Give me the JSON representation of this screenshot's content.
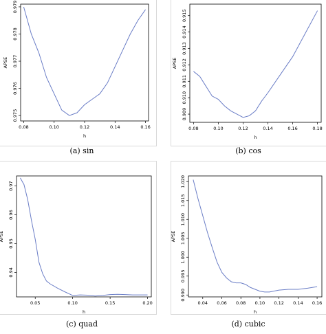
{
  "charts": [
    {
      "caption": "(a) sin",
      "chart_data": {
        "type": "line",
        "xlabel": "h",
        "ylabel": "APSE",
        "xlim": [
          0.078,
          0.162
        ],
        "ylim": [
          0.9748,
          0.9791
        ],
        "xticks": [
          0.08,
          0.1,
          0.12,
          0.14,
          0.16
        ],
        "xtick_labels": [
          "0.08",
          "0.10",
          "0.12",
          "0.14",
          "0.16"
        ],
        "yticks": [
          0.975,
          0.976,
          0.977,
          0.978,
          0.979
        ],
        "ytick_labels": [
          "0.975",
          "0.976",
          "0.977",
          "0.978",
          "0.979"
        ],
        "x": [
          0.08,
          0.085,
          0.09,
          0.095,
          0.1,
          0.105,
          0.11,
          0.115,
          0.12,
          0.125,
          0.13,
          0.135,
          0.14,
          0.145,
          0.15,
          0.155,
          0.16
        ],
        "y": [
          0.979,
          0.978,
          0.9773,
          0.9764,
          0.9758,
          0.9752,
          0.975,
          0.9751,
          0.9754,
          0.9756,
          0.9758,
          0.9762,
          0.9768,
          0.9774,
          0.978,
          0.9785,
          0.9789
        ]
      }
    },
    {
      "caption": "(b) cos",
      "chart_data": {
        "type": "line",
        "xlabel": "h",
        "ylabel": "APSE",
        "xlim": [
          0.077,
          0.183
        ],
        "ylim": [
          0.9085,
          0.9157
        ],
        "xticks": [
          0.08,
          0.1,
          0.12,
          0.14,
          0.16,
          0.18
        ],
        "xtick_labels": [
          "0.08",
          "0.10",
          "0.12",
          "0.14",
          "0.16",
          "0.18"
        ],
        "yticks": [
          0.909,
          0.91,
          0.911,
          0.912,
          0.913,
          0.914,
          0.915
        ],
        "ytick_labels": [
          "0.909",
          "0.910",
          "0.911",
          "0.912",
          "0.913",
          "0.914",
          "0.915"
        ],
        "x": [
          0.08,
          0.085,
          0.09,
          0.095,
          0.1,
          0.105,
          0.11,
          0.115,
          0.12,
          0.125,
          0.13,
          0.135,
          0.14,
          0.15,
          0.16,
          0.17,
          0.18
        ],
        "y": [
          0.9116,
          0.9113,
          0.9107,
          0.9101,
          0.9099,
          0.9095,
          0.9092,
          0.909,
          0.9088,
          0.9089,
          0.9092,
          0.9098,
          0.9103,
          0.9114,
          0.9125,
          0.9139,
          0.9153
        ]
      }
    },
    {
      "caption": "(c) quad",
      "chart_data": {
        "type": "line",
        "xlabel": "h",
        "ylabel": "APSE",
        "xlim": [
          0.025,
          0.205
        ],
        "ylim": [
          0.9315,
          0.9735
        ],
        "xticks": [
          0.05,
          0.1,
          0.15,
          0.2
        ],
        "xtick_labels": [
          "0.05",
          "0.10",
          "0.15",
          "0.20"
        ],
        "yticks": [
          0.94,
          0.95,
          0.96,
          0.97
        ],
        "ytick_labels": [
          "0.94",
          "0.95",
          "0.96",
          "0.97"
        ],
        "x": [
          0.03,
          0.035,
          0.04,
          0.045,
          0.05,
          0.055,
          0.06,
          0.065,
          0.07,
          0.08,
          0.09,
          0.1,
          0.11,
          0.12,
          0.13,
          0.14,
          0.15,
          0.16,
          0.17,
          0.18,
          0.19,
          0.2
        ],
        "y": [
          0.9728,
          0.9705,
          0.9652,
          0.958,
          0.9515,
          0.9435,
          0.9395,
          0.937,
          0.936,
          0.9345,
          0.9332,
          0.932,
          0.9322,
          0.9321,
          0.9318,
          0.932,
          0.9323,
          0.9324,
          0.9323,
          0.9322,
          0.9322,
          0.9322
        ]
      }
    },
    {
      "caption": "(d) cubic",
      "chart_data": {
        "type": "line",
        "xlabel": "h",
        "ylabel": "APSE",
        "xlim": [
          0.025,
          0.165
        ],
        "ylim": [
          0.9895,
          1.0215
        ],
        "xticks": [
          0.04,
          0.06,
          0.08,
          0.1,
          0.12,
          0.14,
          0.16
        ],
        "xtick_labels": [
          "0.04",
          "0.06",
          "0.08",
          "0.10",
          "0.12",
          "0.14",
          "0.16"
        ],
        "yticks": [
          0.99,
          0.995,
          1.0,
          1.005,
          1.01,
          1.015,
          1.02
        ],
        "ytick_labels": [
          "0.990",
          "0.995",
          "1.000",
          "1.005",
          "1.010",
          "1.015",
          "1.020"
        ],
        "x": [
          0.03,
          0.035,
          0.04,
          0.045,
          0.05,
          0.055,
          0.06,
          0.065,
          0.07,
          0.075,
          0.08,
          0.085,
          0.09,
          0.095,
          0.1,
          0.105,
          0.11,
          0.12,
          0.13,
          0.14,
          0.15,
          0.16
        ],
        "y": [
          1.0205,
          1.0155,
          1.011,
          1.0065,
          1.0025,
          0.9987,
          0.996,
          0.9945,
          0.9935,
          0.9932,
          0.9932,
          0.9928,
          0.992,
          0.9915,
          0.991,
          0.9908,
          0.9908,
          0.9913,
          0.9915,
          0.9915,
          0.9918,
          0.9922
        ]
      }
    }
  ]
}
